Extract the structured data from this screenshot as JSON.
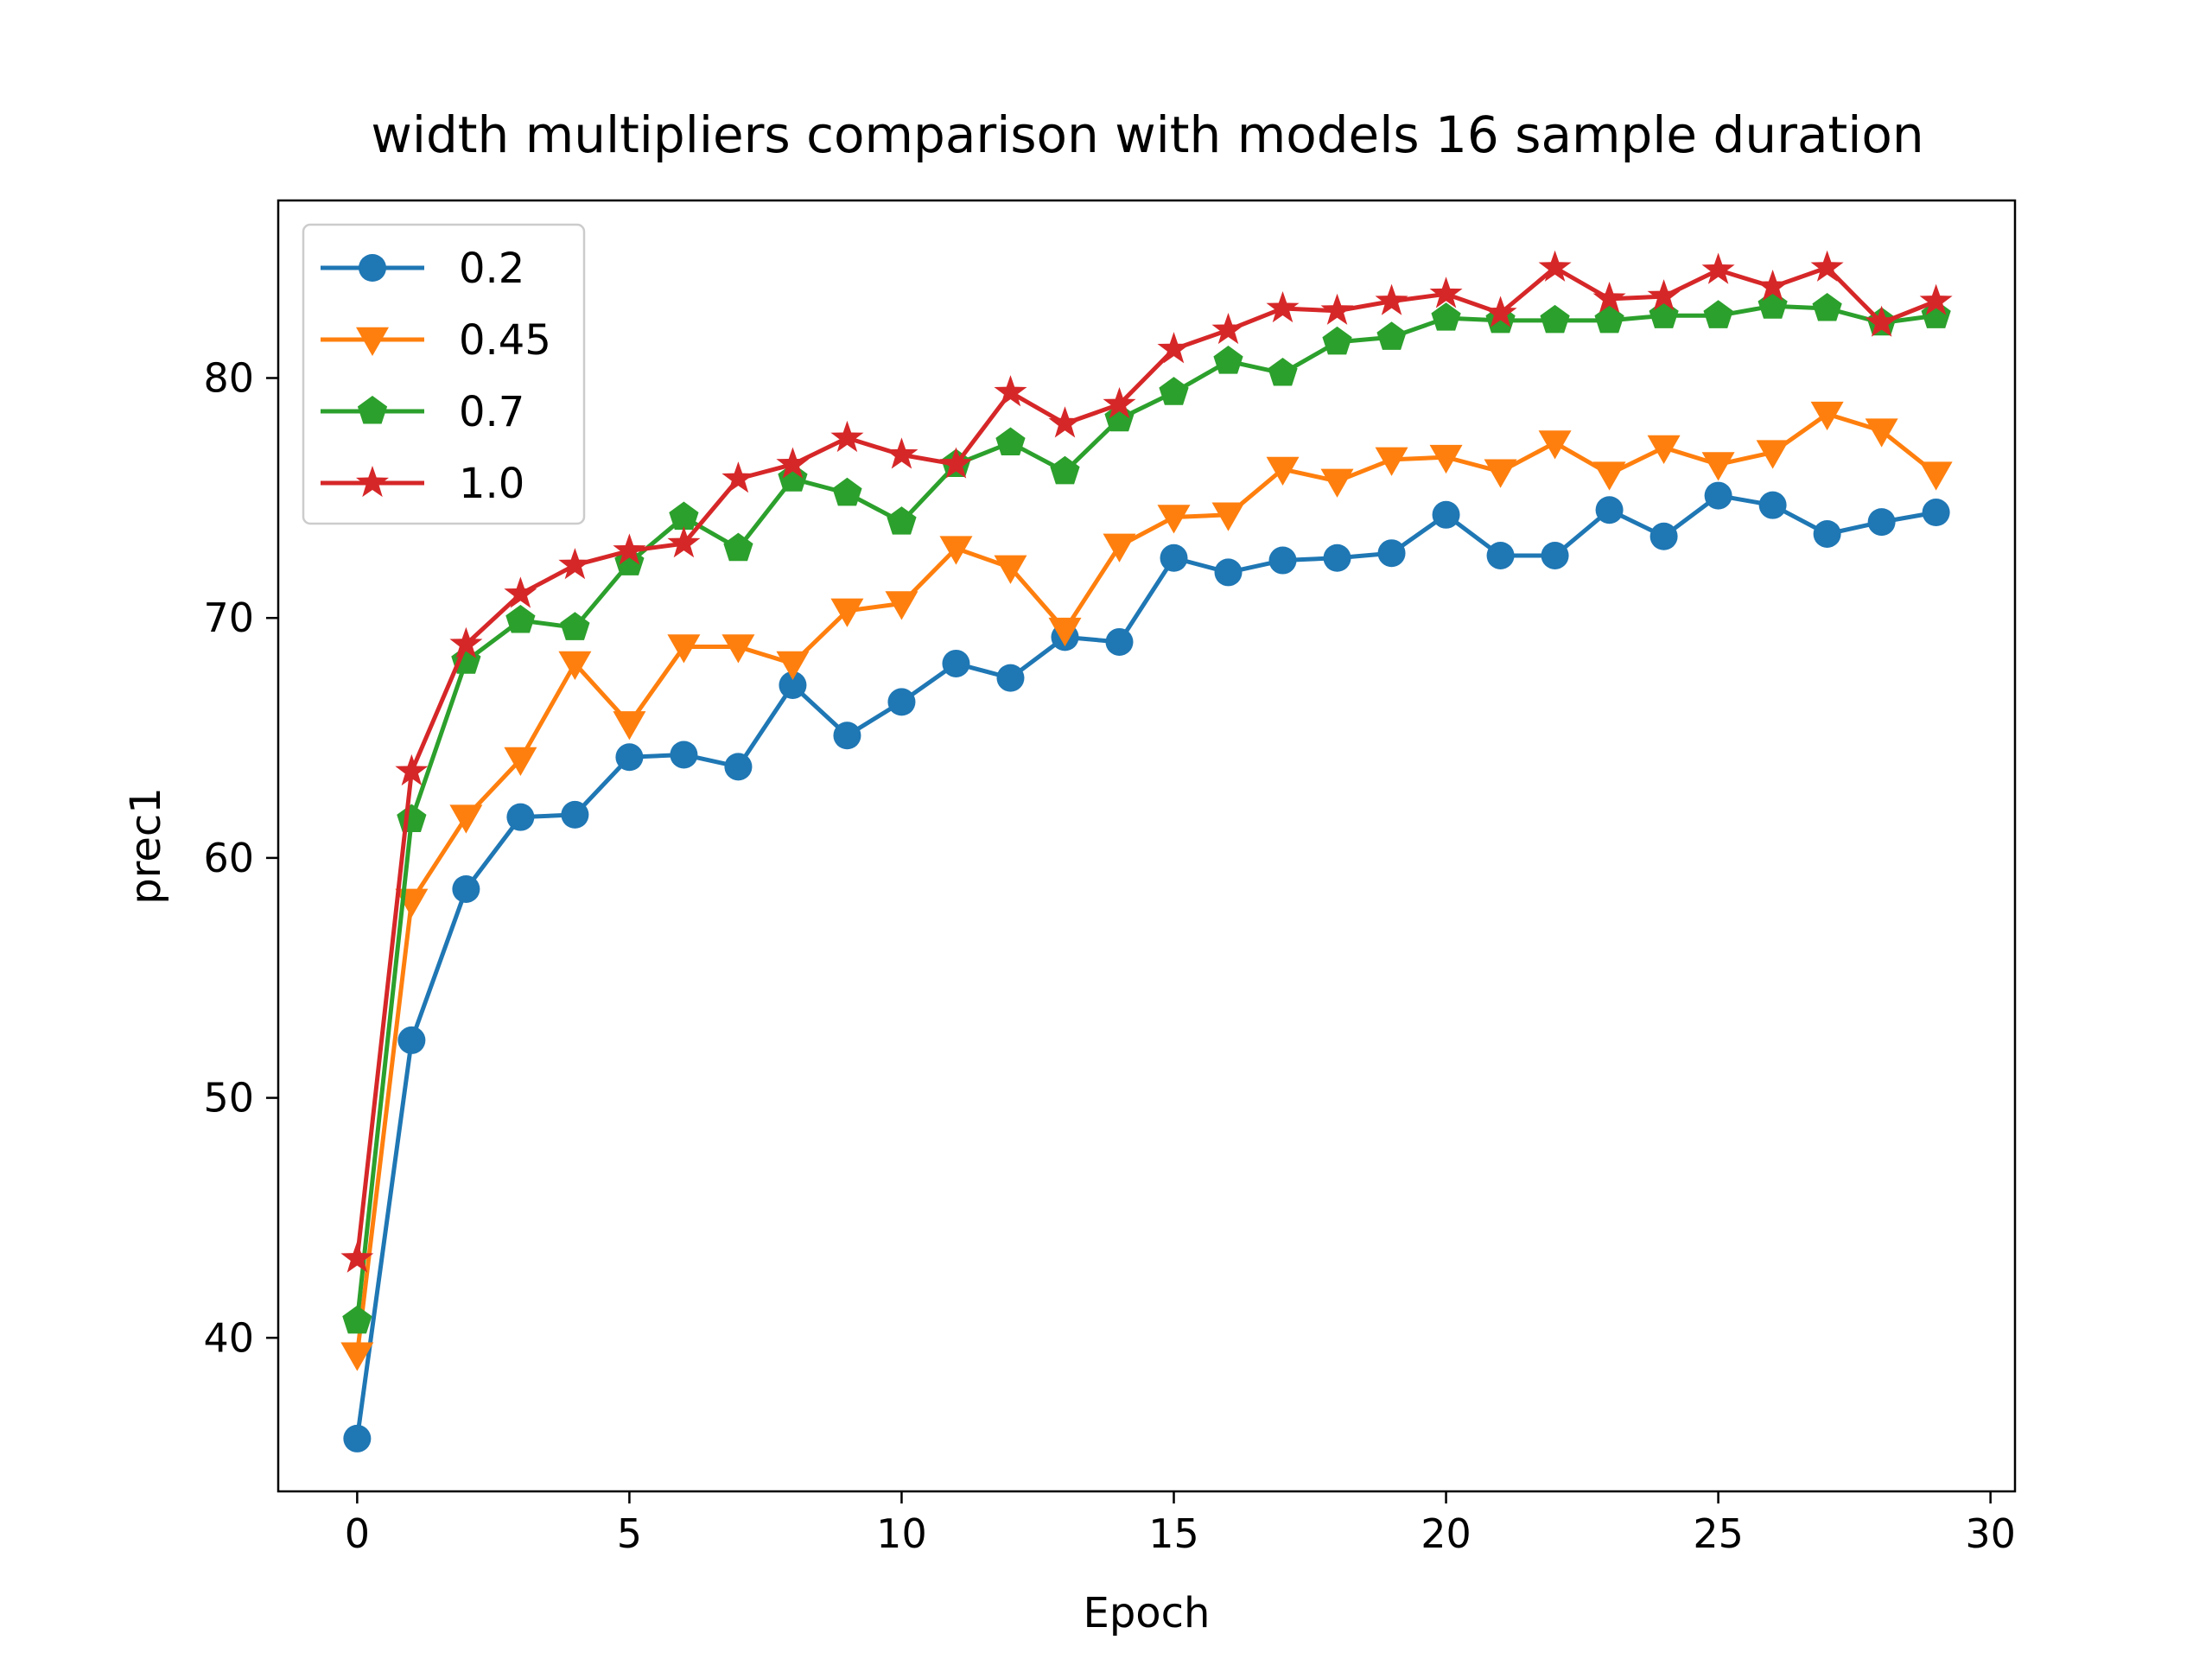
{
  "chart_data": {
    "type": "line",
    "title": "width multipliers comparison with models 16 sample duration",
    "xlabel": "Epoch",
    "ylabel": "prec1",
    "xlim": [
      -1.45,
      30.45
    ],
    "ylim": [
      33.6,
      87.4
    ],
    "xticks": [
      0,
      5,
      10,
      15,
      20,
      25,
      30
    ],
    "yticks": [
      40,
      50,
      60,
      70,
      80
    ],
    "grid": false,
    "legend_position": "upper left",
    "x": [
      0,
      1,
      2,
      3,
      4,
      5,
      6,
      7,
      8,
      9,
      10,
      11,
      12,
      13,
      14,
      15,
      16,
      17,
      18,
      19,
      20,
      21,
      22,
      23,
      24,
      25,
      26,
      27,
      28,
      29
    ],
    "series": [
      {
        "name": "0.2",
        "color": "#1f77b4",
        "marker": "circle",
        "values": [
          35.8,
          52.4,
          58.7,
          61.7,
          61.8,
          64.2,
          64.3,
          63.8,
          67.2,
          65.1,
          66.5,
          68.1,
          67.5,
          69.2,
          69.0,
          72.5,
          71.9,
          72.4,
          72.5,
          72.7,
          74.3,
          72.6,
          72.6,
          74.5,
          73.4,
          75.1,
          74.7,
          73.5,
          74.0,
          74.4
        ]
      },
      {
        "name": "0.45",
        "color": "#ff7f0e",
        "marker": "triangle-down",
        "values": [
          39.3,
          58.2,
          61.7,
          64.1,
          68.1,
          65.6,
          68.8,
          68.8,
          68.1,
          70.3,
          70.6,
          72.9,
          72.1,
          69.5,
          73.0,
          74.2,
          74.3,
          76.2,
          75.7,
          76.6,
          76.7,
          76.1,
          77.3,
          76.0,
          77.1,
          76.4,
          76.9,
          78.5,
          77.8,
          76.0
        ]
      },
      {
        "name": "0.7",
        "color": "#2ca02c",
        "marker": "pentagon",
        "values": [
          40.7,
          61.6,
          68.2,
          69.9,
          69.6,
          72.3,
          74.2,
          72.9,
          75.8,
          75.2,
          74.0,
          76.4,
          77.3,
          76.1,
          78.3,
          79.4,
          80.7,
          80.2,
          81.5,
          81.7,
          82.5,
          82.4,
          82.4,
          82.4,
          82.6,
          82.6,
          83.0,
          82.9,
          82.3,
          82.6
        ]
      },
      {
        "name": "1.0",
        "color": "#d62728",
        "marker": "star",
        "values": [
          43.3,
          63.6,
          68.9,
          71.0,
          72.2,
          72.8,
          73.1,
          75.8,
          76.4,
          77.5,
          76.8,
          76.4,
          79.4,
          78.1,
          78.9,
          81.2,
          82.0,
          82.9,
          82.8,
          83.2,
          83.5,
          82.7,
          84.6,
          83.3,
          83.4,
          84.5,
          83.8,
          84.6,
          82.3,
          83.2
        ]
      }
    ]
  }
}
